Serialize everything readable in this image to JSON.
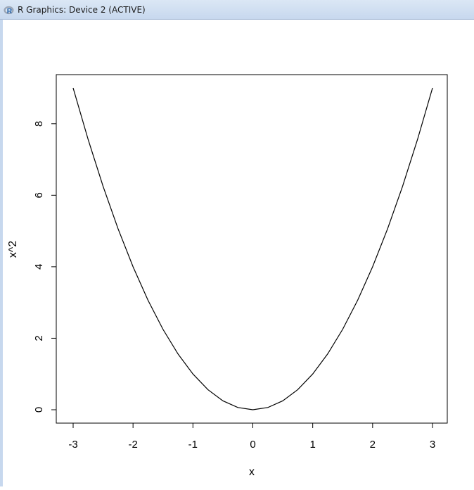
{
  "window": {
    "title": "R Graphics: Device 2 (ACTIVE)",
    "icon": "r-logo-icon"
  },
  "chart_data": {
    "type": "line",
    "title": "",
    "xlabel": "x",
    "ylabel": "x^2",
    "xlim": [
      -3,
      3
    ],
    "ylim": [
      0,
      9
    ],
    "x_ticks": [
      -3,
      -2,
      -1,
      0,
      1,
      2,
      3
    ],
    "y_ticks": [
      0,
      2,
      4,
      6,
      8
    ],
    "grid": false,
    "legend": "none",
    "series": [
      {
        "x": [
          -3,
          -2.75,
          -2.5,
          -2.25,
          -2,
          -1.75,
          -1.5,
          -1.25,
          -1,
          -0.75,
          -0.5,
          -0.25,
          0,
          0.25,
          0.5,
          0.75,
          1,
          1.25,
          1.5,
          1.75,
          2,
          2.25,
          2.5,
          2.75,
          3
        ],
        "values": [
          9,
          7.5625,
          6.25,
          5.0625,
          4,
          3.0625,
          2.25,
          1.5625,
          1,
          0.5625,
          0.25,
          0.0625,
          0,
          0.0625,
          0.25,
          0.5625,
          1,
          1.5625,
          2.25,
          3.0625,
          4,
          5.0625,
          6.25,
          7.5625,
          9
        ],
        "color": "#000000"
      }
    ]
  }
}
